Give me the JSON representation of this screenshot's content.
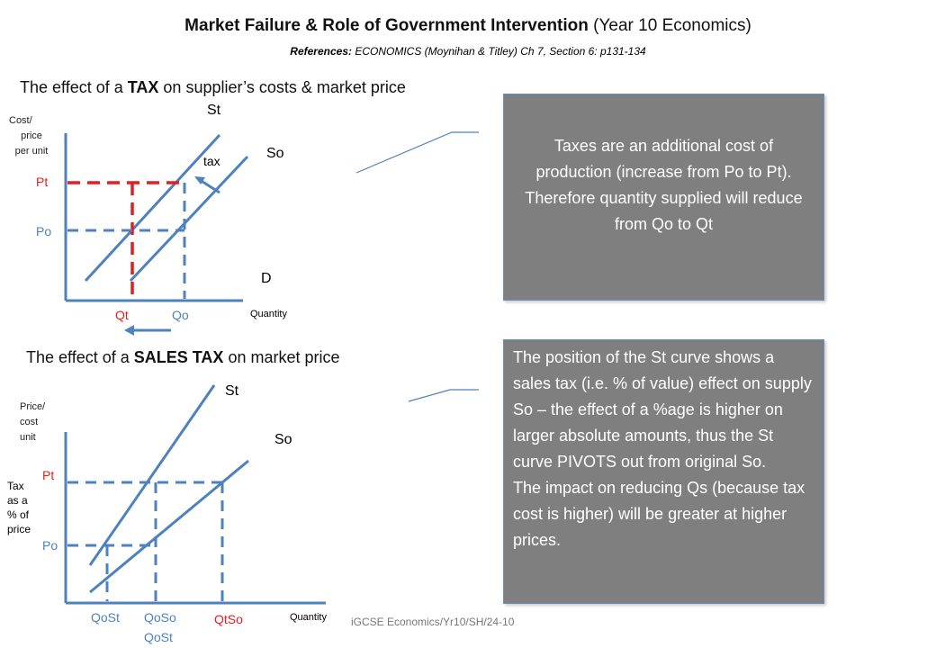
{
  "title_bold": "Market Failure & Role of Government Intervention",
  "title_rest": "(Year 10 Economics)",
  "refs_label": "References:",
  "refs_text": "ECONOMICS (Moynihan & Titley) Ch 7, Section 6: p131-134",
  "diagram1": {
    "heading_pre": "The effect of a ",
    "heading_bold": "TAX",
    "heading_post": " on supplier’s costs & market price",
    "y_axis_label": [
      "Cost/",
      "price",
      "per unit"
    ],
    "x_axis_label": "Quantity",
    "curve_st": "St",
    "curve_so": "So",
    "curve_d": "D",
    "tax_label": "tax",
    "pt": "Pt",
    "po": "Po",
    "qt": "Qt",
    "qo": "Qo"
  },
  "diagram2": {
    "heading_pre": "The effect of a ",
    "heading_bold": "SALES TAX",
    "heading_post": " on market price",
    "y_axis_label": [
      "Price/",
      "cost",
      "unit"
    ],
    "x_axis_label": "Quantity",
    "curve_st": "St",
    "curve_so": "So",
    "tax_label": [
      "Tax",
      "as a",
      "% of",
      "price"
    ],
    "pt": "Pt",
    "po": "Po",
    "qost": "QoSt",
    "qoso": "QoSo",
    "qost2": "QoSt",
    "qtso": "QtSo"
  },
  "box1_text": "Taxes are an additional cost of production (increase from Po to Pt). Therefore quantity supplied will reduce from Qo to Qt",
  "box2_text1": "The position of the St curve shows a sales tax (i.e. % of value) effect on supply So – the effect of a %age is higher on larger absolute amounts, thus the St curve PIVOTS out from original So.",
  "box2_text2": "The impact on reducing Qs (because tax cost is higher) will be greater at higher prices.",
  "footer": "iGCSE Economics/Yr10/SH/24-10",
  "colors": {
    "curve": "#4f81bd",
    "tax_red": "#e02020",
    "box_fill": "#7f7f7f"
  }
}
